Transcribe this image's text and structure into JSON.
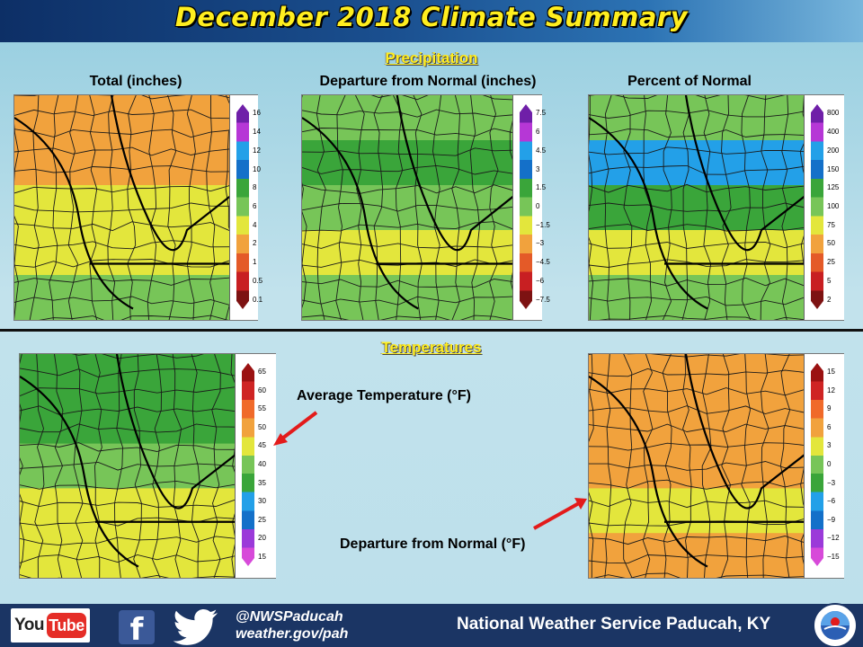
{
  "header": {
    "title": "December 2018 Climate Summary"
  },
  "precipitation": {
    "heading": "Precipitation",
    "maps": [
      {
        "label": "Total (inches)",
        "legend_ticks": [
          "16",
          "14",
          "12",
          "10",
          "8",
          "6",
          "4",
          "2",
          "1",
          "0.5",
          "0.1"
        ],
        "legend_colors": [
          "#6f1fa8",
          "#b637d6",
          "#23a0e8",
          "#1470c9",
          "#3aa53a",
          "#77c558",
          "#e3e63c",
          "#f1a23d",
          "#e45a28",
          "#c81f22",
          "#7d1212"
        ]
      },
      {
        "label": "Departure from Normal (inches)",
        "legend_ticks": [
          "7.5",
          "6",
          "4.5",
          "3",
          "1.5",
          "0",
          "−1.5",
          "−3",
          "−4.5",
          "−6",
          "−7.5"
        ],
        "legend_colors": [
          "#6f1fa8",
          "#b637d6",
          "#23a0e8",
          "#1470c9",
          "#3aa53a",
          "#77c558",
          "#e3e63c",
          "#f1a23d",
          "#e45a28",
          "#c81f22",
          "#7d1212"
        ]
      },
      {
        "label": "Percent of Normal",
        "legend_ticks": [
          "800",
          "400",
          "200",
          "150",
          "125",
          "100",
          "75",
          "50",
          "25",
          "5",
          "2"
        ],
        "legend_colors": [
          "#6f1fa8",
          "#b637d6",
          "#23a0e8",
          "#1470c9",
          "#3aa53a",
          "#77c558",
          "#e3e63c",
          "#f1a23d",
          "#e45a28",
          "#c81f22",
          "#7d1212"
        ]
      }
    ]
  },
  "temperatures": {
    "heading": "Temperatures",
    "maps": [
      {
        "callout": "Average Temperature (°F)",
        "legend_ticks": [
          "65",
          "60",
          "55",
          "50",
          "45",
          "40",
          "35",
          "30",
          "25",
          "20",
          "15"
        ],
        "legend_colors": [
          "#9b1212",
          "#cf2424",
          "#f06a2a",
          "#f1a23d",
          "#e3e63c",
          "#77c558",
          "#3aa53a",
          "#23a0e8",
          "#1470c9",
          "#9b3ad9",
          "#d74ad9"
        ]
      },
      {
        "callout": "Departure from Normal (°F)",
        "legend_ticks": [
          "15",
          "12",
          "9",
          "6",
          "3",
          "0",
          "−3",
          "−6",
          "−9",
          "−12",
          "−15"
        ],
        "legend_colors": [
          "#9b1212",
          "#cf2424",
          "#f06a2a",
          "#f1a23d",
          "#e3e63c",
          "#77c558",
          "#3aa53a",
          "#23a0e8",
          "#1470c9",
          "#9b3ad9",
          "#d74ad9"
        ]
      }
    ]
  },
  "footer": {
    "youtube_you": "You",
    "youtube_tube": "Tube",
    "facebook_glyph": "f",
    "handle": "@NWSPaducah",
    "website": "weather.gov/pah",
    "org_name": "National Weather Service Paducah, KY"
  },
  "map_fills": {
    "total_precip": [
      "#f1a23d",
      "#f1a23d",
      "#e3e63c",
      "#e3e63c",
      "#77c558"
    ],
    "departure_precip": [
      "#77c558",
      "#3aa53a",
      "#77c558",
      "#e3e63c",
      "#77c558"
    ],
    "percent_precip": [
      "#77c558",
      "#23a0e8",
      "#3aa53a",
      "#e3e63c",
      "#77c558"
    ],
    "avg_temp": [
      "#3aa53a",
      "#3aa53a",
      "#77c558",
      "#e3e63c",
      "#e3e63c"
    ],
    "temp_departure": [
      "#f1a23d",
      "#f1a23d",
      "#f1a23d",
      "#e3e63c",
      "#f1a23d"
    ]
  }
}
